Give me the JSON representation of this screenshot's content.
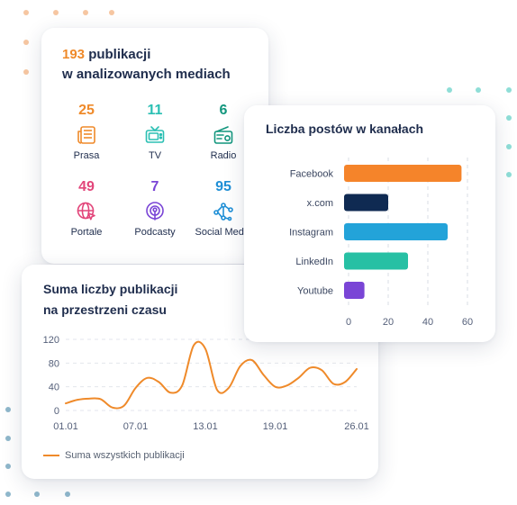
{
  "publications": {
    "total": "193",
    "title_rest": " publikacji",
    "title_line2": "w analizowanych mediach",
    "stats": [
      {
        "value": "25",
        "label": "Prasa",
        "color": "#ef8a2a",
        "icon": "newspaper-icon"
      },
      {
        "value": "11",
        "label": "TV",
        "color": "#2abfb3",
        "icon": "tv-icon"
      },
      {
        "value": "6",
        "label": "Radio",
        "color": "#12967d",
        "icon": "radio-icon"
      },
      {
        "value": "49",
        "label": "Portale",
        "color": "#e2457a",
        "icon": "globe-icon"
      },
      {
        "value": "7",
        "label": "Podcasty",
        "color": "#7a45d6",
        "icon": "podcast-icon"
      },
      {
        "value": "95",
        "label": "Social Media",
        "color": "#1f8fd6",
        "icon": "share-network-icon"
      }
    ]
  },
  "channels": {
    "title": "Liczba postów w kanałach"
  },
  "timeline": {
    "title_line1": "Suma liczby publikacji",
    "title_line2": "na przestrzeni czasu",
    "legend": "Suma wszystkich publikacji"
  },
  "chart_data": [
    {
      "type": "bar",
      "orientation": "horizontal",
      "title": "Liczba postów w kanałach",
      "categories": [
        "Facebook",
        "x.com",
        "Instagram",
        "LinkedIn",
        "Youtube"
      ],
      "values": [
        57,
        20,
        50,
        30,
        8
      ],
      "colors": [
        "#f5842a",
        "#0f2a52",
        "#23a3d9",
        "#27c0a4",
        "#7a45d6"
      ],
      "xlim": [
        0,
        60
      ],
      "xticks": [
        0,
        20,
        40,
        60
      ],
      "grid": true
    },
    {
      "type": "line",
      "title": "Suma liczby publikacji na przestrzeni czasu",
      "x": [
        "01.01",
        "02.01",
        "03.01",
        "04.01",
        "05.01",
        "06.01",
        "07.01",
        "08.01",
        "09.01",
        "10.01",
        "11.01",
        "12.01",
        "13.01",
        "14.01",
        "15.01",
        "16.01",
        "17.01",
        "18.01",
        "19.01",
        "20.01",
        "21.01",
        "22.01",
        "23.01",
        "24.01",
        "25.01",
        "26.01"
      ],
      "x_tick_labels": [
        "01.01",
        "07.01",
        "13.01",
        "19.01",
        "26.01"
      ],
      "series": [
        {
          "name": "Suma wszystkich publikacji",
          "color": "#ef8a2a",
          "values": [
            12,
            18,
            20,
            19,
            5,
            8,
            38,
            55,
            48,
            30,
            42,
            110,
            104,
            35,
            38,
            75,
            85,
            60,
            40,
            42,
            55,
            72,
            68,
            45,
            48,
            70
          ]
        }
      ],
      "ylim": [
        0,
        120
      ],
      "yticks": [
        0,
        40,
        80,
        120
      ],
      "grid": true,
      "legend_position": "bottom-left"
    }
  ]
}
